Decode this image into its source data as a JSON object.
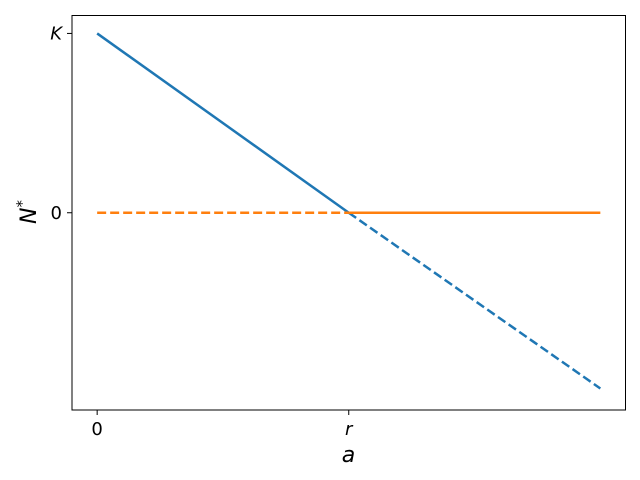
{
  "chart_data": {
    "type": "line",
    "xlabel": "a",
    "ylabel": "N",
    "ylabel_superscript": "*",
    "x_ticks": [
      {
        "value": 0,
        "label": "0",
        "italic": false
      },
      {
        "value": 1,
        "label": "r",
        "italic": true
      }
    ],
    "y_ticks": [
      {
        "value": 1,
        "label": "K",
        "italic": true
      },
      {
        "value": 0,
        "label": "0",
        "italic": false
      }
    ],
    "xlim": [
      -0.1,
      2.1
    ],
    "ylim": [
      -1.1,
      1.1
    ],
    "grid": false,
    "legend": "none",
    "series": [
      {
        "color": "#1f77b4",
        "segments": [
          {
            "style": "solid",
            "x": [
              0,
              1
            ],
            "y": [
              1,
              0
            ]
          },
          {
            "style": "dashed",
            "x": [
              1,
              2
            ],
            "y": [
              0,
              -0.98
            ]
          }
        ]
      },
      {
        "color": "#ff7f0e",
        "segments": [
          {
            "style": "dashed",
            "x": [
              0,
              1
            ],
            "y": [
              0,
              0
            ]
          },
          {
            "style": "solid",
            "x": [
              1,
              2
            ],
            "y": [
              0,
              0
            ]
          }
        ]
      }
    ]
  }
}
